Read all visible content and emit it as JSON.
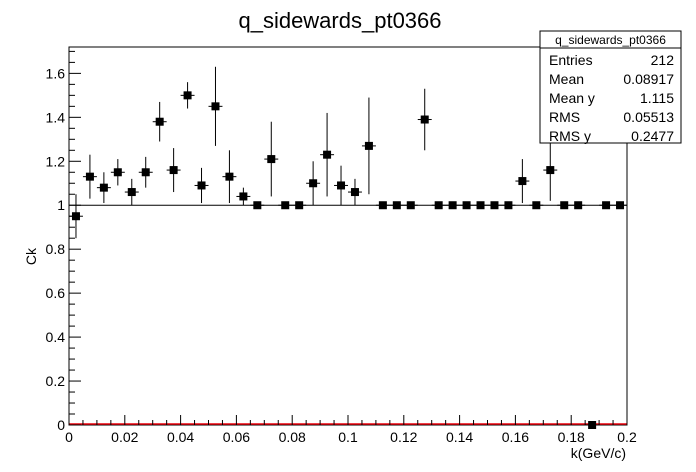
{
  "chart_data": {
    "type": "scatter",
    "title": "q_sidewards_pt0366",
    "xlabel": "k(GeV/c)",
    "ylabel": "Ck",
    "xlim": [
      0,
      0.2
    ],
    "ylim": [
      0,
      1.72
    ],
    "x_ticks": [
      "0",
      "0.02",
      "0.04",
      "0.06",
      "0.08",
      "0.1",
      "0.12",
      "0.14",
      "0.16",
      "0.18",
      "0.2"
    ],
    "y_ticks": [
      "0",
      "0.2",
      "0.4",
      "0.6",
      "0.8",
      "1",
      "1.2",
      "1.4",
      "1.6"
    ],
    "reference_line": 1,
    "points": [
      {
        "x": 0.0025,
        "y": 0.95,
        "err": 0.1
      },
      {
        "x": 0.0075,
        "y": 1.13,
        "err": 0.1
      },
      {
        "x": 0.0125,
        "y": 1.08,
        "err": 0.07
      },
      {
        "x": 0.0175,
        "y": 1.15,
        "err": 0.06
      },
      {
        "x": 0.0225,
        "y": 1.06,
        "err": 0.06
      },
      {
        "x": 0.0275,
        "y": 1.15,
        "err": 0.07
      },
      {
        "x": 0.0325,
        "y": 1.38,
        "err": 0.09
      },
      {
        "x": 0.0375,
        "y": 1.16,
        "err": 0.1
      },
      {
        "x": 0.0425,
        "y": 1.5,
        "err": 0.06
      },
      {
        "x": 0.0475,
        "y": 1.09,
        "err": 0.08
      },
      {
        "x": 0.0525,
        "y": 1.45,
        "err": 0.18
      },
      {
        "x": 0.0575,
        "y": 1.13,
        "err": 0.12
      },
      {
        "x": 0.0625,
        "y": 1.04,
        "err": 0.04
      },
      {
        "x": 0.0675,
        "y": 1.0,
        "err": 0
      },
      {
        "x": 0.0725,
        "y": 1.21,
        "err": 0.17
      },
      {
        "x": 0.0775,
        "y": 1.0,
        "err": 0
      },
      {
        "x": 0.0825,
        "y": 1.0,
        "err": 0
      },
      {
        "x": 0.0875,
        "y": 1.1,
        "err": 0.1
      },
      {
        "x": 0.0925,
        "y": 1.23,
        "err": 0.19
      },
      {
        "x": 0.0975,
        "y": 1.09,
        "err": 0.09
      },
      {
        "x": 0.1025,
        "y": 1.06,
        "err": 0.06
      },
      {
        "x": 0.1075,
        "y": 1.27,
        "err": 0.22
      },
      {
        "x": 0.1125,
        "y": 1.0,
        "err": 0
      },
      {
        "x": 0.1175,
        "y": 1.0,
        "err": 0
      },
      {
        "x": 0.1225,
        "y": 1.0,
        "err": 0
      },
      {
        "x": 0.1275,
        "y": 1.39,
        "err": 0.14
      },
      {
        "x": 0.1325,
        "y": 1.0,
        "err": 0
      },
      {
        "x": 0.1375,
        "y": 1.0,
        "err": 0
      },
      {
        "x": 0.1425,
        "y": 1.0,
        "err": 0
      },
      {
        "x": 0.1475,
        "y": 1.0,
        "err": 0
      },
      {
        "x": 0.1525,
        "y": 1.0,
        "err": 0
      },
      {
        "x": 0.1575,
        "y": 1.0,
        "err": 0
      },
      {
        "x": 0.1625,
        "y": 1.11,
        "err": 0.1
      },
      {
        "x": 0.1675,
        "y": 1.0,
        "err": 0
      },
      {
        "x": 0.1725,
        "y": 1.16,
        "err": 0.14
      },
      {
        "x": 0.1775,
        "y": 1.0,
        "err": 0
      },
      {
        "x": 0.1825,
        "y": 1.0,
        "err": 0
      },
      {
        "x": 0.1875,
        "y": 0.0,
        "err": 0
      },
      {
        "x": 0.1925,
        "y": 1.0,
        "err": 0
      },
      {
        "x": 0.1975,
        "y": 1.0,
        "err": 0
      }
    ],
    "baseline_color": "#e8000b",
    "reference_line_color": "#000000",
    "grid": false
  },
  "stats": {
    "title": "q_sidewards_pt0366",
    "rows": [
      {
        "label": "Entries",
        "value": "212"
      },
      {
        "label": "Mean",
        "value": "0.08917"
      },
      {
        "label": "Mean y",
        "value": "1.115"
      },
      {
        "label": "RMS",
        "value": "0.05513"
      },
      {
        "label": "RMS y",
        "value": "0.2477"
      }
    ]
  }
}
